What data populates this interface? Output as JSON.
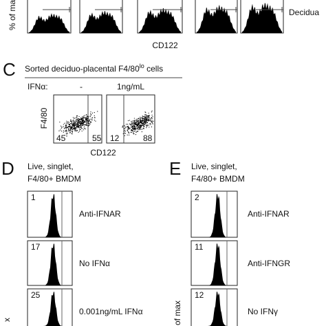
{
  "panel_b": {
    "y_label": "% of ma",
    "x_label": "CD122",
    "legend": "Decidua"
  },
  "panel_c": {
    "letter": "C",
    "title": "Sorted deciduo-placental F4/80",
    "title_sup": "lo",
    "title_end": " cells",
    "condition_label": "IFNα:",
    "conditions": [
      "-",
      "1ng/mL"
    ],
    "y_label": "F4/80",
    "x_label": "CD122",
    "quadrants": [
      [
        45,
        55
      ],
      [
        12,
        88
      ]
    ]
  },
  "panel_d": {
    "letter": "D",
    "gate": [
      "Live, singlet,",
      "F4/80+ BMDM"
    ],
    "y_label": "x",
    "rows": [
      {
        "value": 1,
        "label": "Anti-IFNAR"
      },
      {
        "value": 17,
        "label": "No IFNα"
      },
      {
        "value": 25,
        "label": "0.001ng/mL IFNα"
      }
    ]
  },
  "panel_e": {
    "letter": "E",
    "gate": [
      "Live, singlet,",
      "F4/80+ BMDM"
    ],
    "y_label": "of max",
    "rows": [
      {
        "value": 2,
        "label": "Anti-IFNAR"
      },
      {
        "value": 11,
        "label": "Anti-IFNGR"
      },
      {
        "value": 12,
        "label": "No IFNγ"
      }
    ]
  }
}
